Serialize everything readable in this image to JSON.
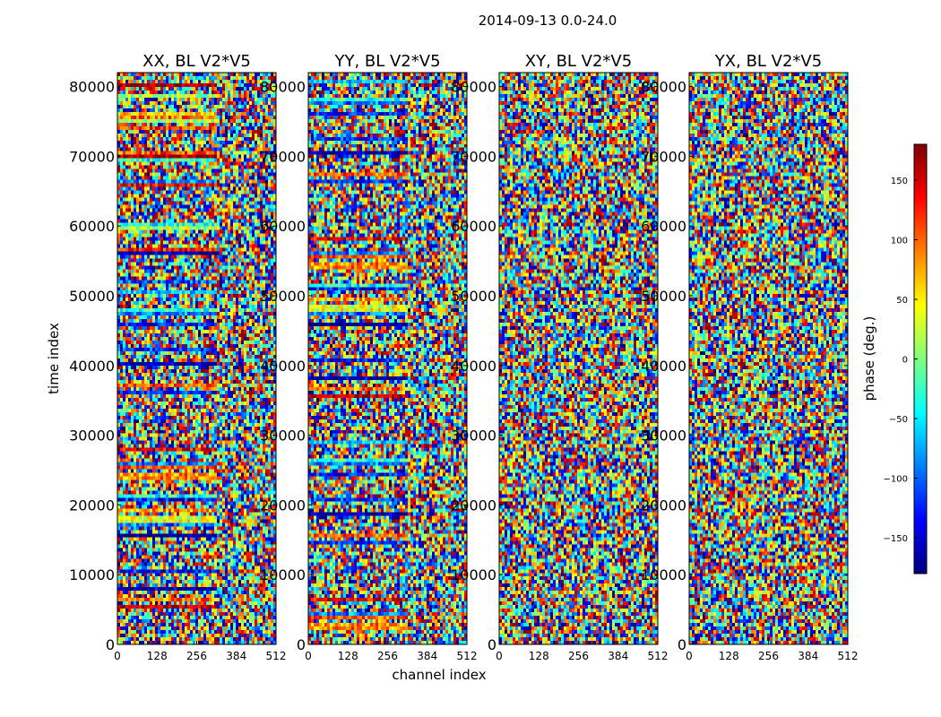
{
  "figure": {
    "suptitle": "2014-09-13 0.0-24.0"
  },
  "chart_data": {
    "type": "heatmap",
    "xlabel": "channel index",
    "ylabel": "time index",
    "x_range": [
      0,
      512
    ],
    "y_range": [
      0,
      82000
    ],
    "x_ticks": [
      "0",
      "128",
      "256",
      "384",
      "512"
    ],
    "y_ticks": [
      "0",
      "10000",
      "20000",
      "30000",
      "40000",
      "50000",
      "60000",
      "70000",
      "80000"
    ],
    "panels": [
      {
        "title": "XX, BL V2*V5"
      },
      {
        "title": "YY, BL V2*V5"
      },
      {
        "title": "XY, BL V2*V5"
      },
      {
        "title": "YX, BL V2*V5"
      }
    ],
    "colorbar": {
      "label": "phase (deg.)",
      "range": [
        -180,
        180
      ],
      "ticks": [
        "150",
        "100",
        "50",
        "0",
        "−50",
        "−100",
        "−150"
      ],
      "colormap": "jet"
    },
    "value_description": "phase (deg.) per time index and channel index, rendered as per-pixel colour"
  },
  "colors": {
    "text": "#000000",
    "jet": [
      "#00007f",
      "#0000ff",
      "#007fff",
      "#00ffff",
      "#7fff7f",
      "#ffff00",
      "#ff7f00",
      "#ff0000",
      "#7f0000"
    ]
  }
}
